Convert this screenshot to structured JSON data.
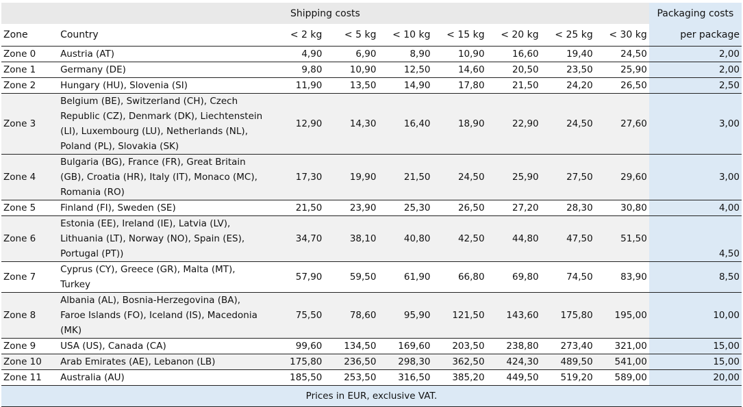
{
  "header": {
    "shipping_title": "Shipping costs",
    "packaging_title": "Packaging costs",
    "zone_label": "Zone",
    "country_label": "Country",
    "weights": [
      "< 2 kg",
      "< 5 kg",
      "< 10 kg",
      "< 15 kg",
      "< 20 kg",
      "< 25 kg",
      "< 30 kg"
    ],
    "per_package_label": "per package"
  },
  "rows": [
    {
      "zone": "Zone 0",
      "country": "Austria (AT)",
      "prices": [
        "4,90",
        "6,90",
        "8,90",
        "10,90",
        "16,60",
        "19,40",
        "24,50"
      ],
      "pack": "2,00"
    },
    {
      "zone": "Zone 1",
      "country": "Germany (DE)",
      "prices": [
        "9,80",
        "10,90",
        "12,50",
        "14,60",
        "20,50",
        "23,50",
        "25,90"
      ],
      "pack": "2,00"
    },
    {
      "zone": "Zone 2",
      "country": "Hungary (HU), Slovenia (SI)",
      "prices": [
        "11,90",
        "13,50",
        "14,90",
        "17,80",
        "21,50",
        "24,20",
        "26,50"
      ],
      "pack": "2,50"
    },
    {
      "zone": "Zone 3",
      "country": "Belgium (BE), Switzerland (CH), Czech Republic (CZ), Denmark (DK), Liechtenstein (LI), Luxembourg (LU), Netherlands (NL), Poland (PL), Slovakia (SK)",
      "prices": [
        "12,90",
        "14,30",
        "16,40",
        "18,90",
        "22,90",
        "24,50",
        "27,60"
      ],
      "pack": "3,00"
    },
    {
      "zone": "Zone 4",
      "country": "Bulgaria (BG), France (FR), Great Britain (GB), Croatia (HR), Italy (IT), Monaco (MC), Romania (RO)",
      "prices": [
        "17,30",
        "19,90",
        "21,50",
        "24,50",
        "25,90",
        "27,50",
        "29,60"
      ],
      "pack": "3,00"
    },
    {
      "zone": "Zone 5",
      "country": "Finland (FI), Sweden (SE)",
      "prices": [
        "21,50",
        "23,90",
        "25,30",
        "26,50",
        "27,20",
        "28,30",
        "30,80"
      ],
      "pack": "4,00"
    },
    {
      "zone": "Zone 6",
      "country": "Estonia (EE), Ireland (IE), Latvia (LV), Lithuania (LT), Norway (NO), Spain (ES), Portugal (PT))",
      "prices": [
        "34,70",
        "38,10",
        "40,80",
        "42,50",
        "44,80",
        "47,50",
        "51,50"
      ],
      "pack": "4,50"
    },
    {
      "zone": "Zone 7",
      "country": "Cyprus (CY), Greece (GR), Malta (MT), Turkey",
      "prices": [
        "57,90",
        "59,50",
        "61,90",
        "66,80",
        "69,80",
        "74,50",
        "83,90"
      ],
      "pack": "8,50"
    },
    {
      "zone": "Zone 8",
      "country": "Albania (AL), Bosnia-Herzegovina (BA), Faroe Islands (FO), Iceland (IS), Macedonia (MK)",
      "prices": [
        "75,50",
        "78,60",
        "95,90",
        "121,50",
        "143,60",
        "175,80",
        "195,00"
      ],
      "pack": "10,00"
    },
    {
      "zone": "Zone 9",
      "country": "USA (US), Canada (CA)",
      "prices": [
        "99,60",
        "134,50",
        "169,60",
        "203,50",
        "238,80",
        "273,40",
        "321,00"
      ],
      "pack": "15,00"
    },
    {
      "zone": "Zone 10",
      "country": "Arab Emirates (AE), Lebanon (LB)",
      "prices": [
        "175,80",
        "236,50",
        "298,30",
        "362,50",
        "424,30",
        "489,50",
        "541,00"
      ],
      "pack": "15,00"
    },
    {
      "zone": "Zone 11",
      "country": "Australia (AU)",
      "prices": [
        "185,50",
        "253,50",
        "316,50",
        "385,20",
        "449,50",
        "519,20",
        "589,00"
      ],
      "pack": "20,00"
    }
  ],
  "footer": {
    "note": "Prices in EUR, exclusive VAT."
  }
}
